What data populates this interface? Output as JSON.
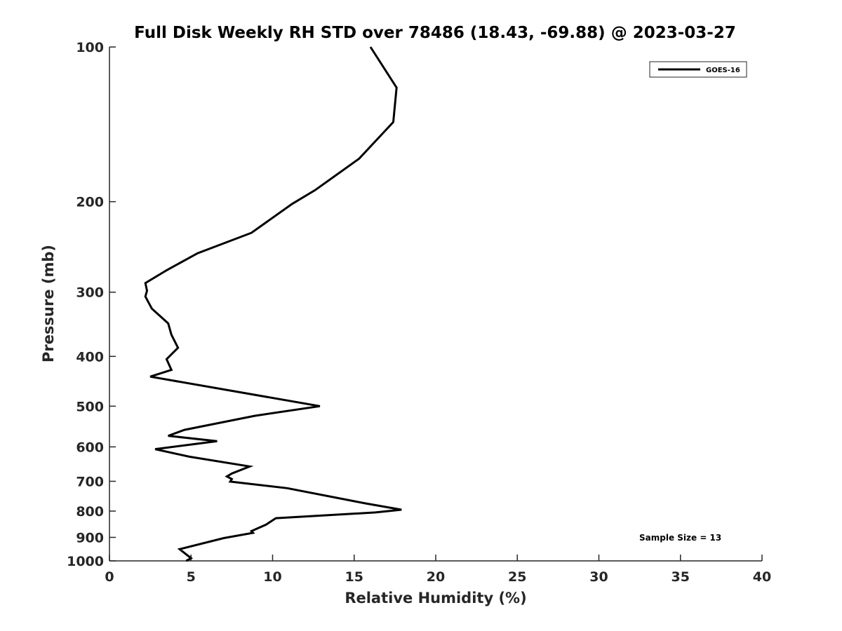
{
  "chart_data": {
    "type": "line",
    "title": "Full Disk Weekly RH STD over 78486 (18.43, -69.88) @ 2023-03-27",
    "xlabel": "Relative Humidity (%)",
    "ylabel": "Pressure (mb)",
    "xlim": [
      0,
      40
    ],
    "ylim": [
      100,
      1000
    ],
    "y_scale": "log",
    "y_reversed": true,
    "grid": false,
    "x_ticks": [
      0,
      5,
      10,
      15,
      20,
      25,
      30,
      35,
      40
    ],
    "y_ticks": [
      100,
      200,
      300,
      400,
      500,
      600,
      700,
      800,
      900,
      1000
    ],
    "legend": {
      "position": "top-right",
      "entries": [
        "GOES-16"
      ]
    },
    "annotations": [
      "Sample Size = 13"
    ],
    "series": [
      {
        "name": "GOES-16",
        "color": "#000000",
        "x": [
          16.0,
          17.6,
          17.4,
          15.3,
          12.6,
          11.2,
          8.7,
          5.4,
          3.5,
          2.2,
          2.3,
          2.2,
          2.6,
          3.6,
          3.8,
          4.2,
          3.5,
          3.8,
          2.5,
          12.9,
          8.9,
          4.6,
          3.6,
          6.6,
          2.8,
          4.9,
          8.6,
          7.5,
          7.2,
          7.5,
          7.4,
          10.9,
          15.7,
          17.9,
          16.3,
          10.2,
          9.6,
          8.7,
          8.8,
          7.0,
          4.3,
          5.0,
          4.7
        ],
        "y": [
          100,
          120,
          140,
          165,
          190,
          202,
          230,
          252,
          272,
          288,
          298,
          306,
          323,
          345,
          363,
          385,
          405,
          425,
          438,
          500,
          522,
          556,
          571,
          585,
          606,
          627,
          655,
          676,
          685,
          693,
          701,
          722,
          773,
          795,
          805,
          826,
          850,
          875,
          882,
          903,
          949,
          988,
          1000
        ]
      }
    ]
  }
}
